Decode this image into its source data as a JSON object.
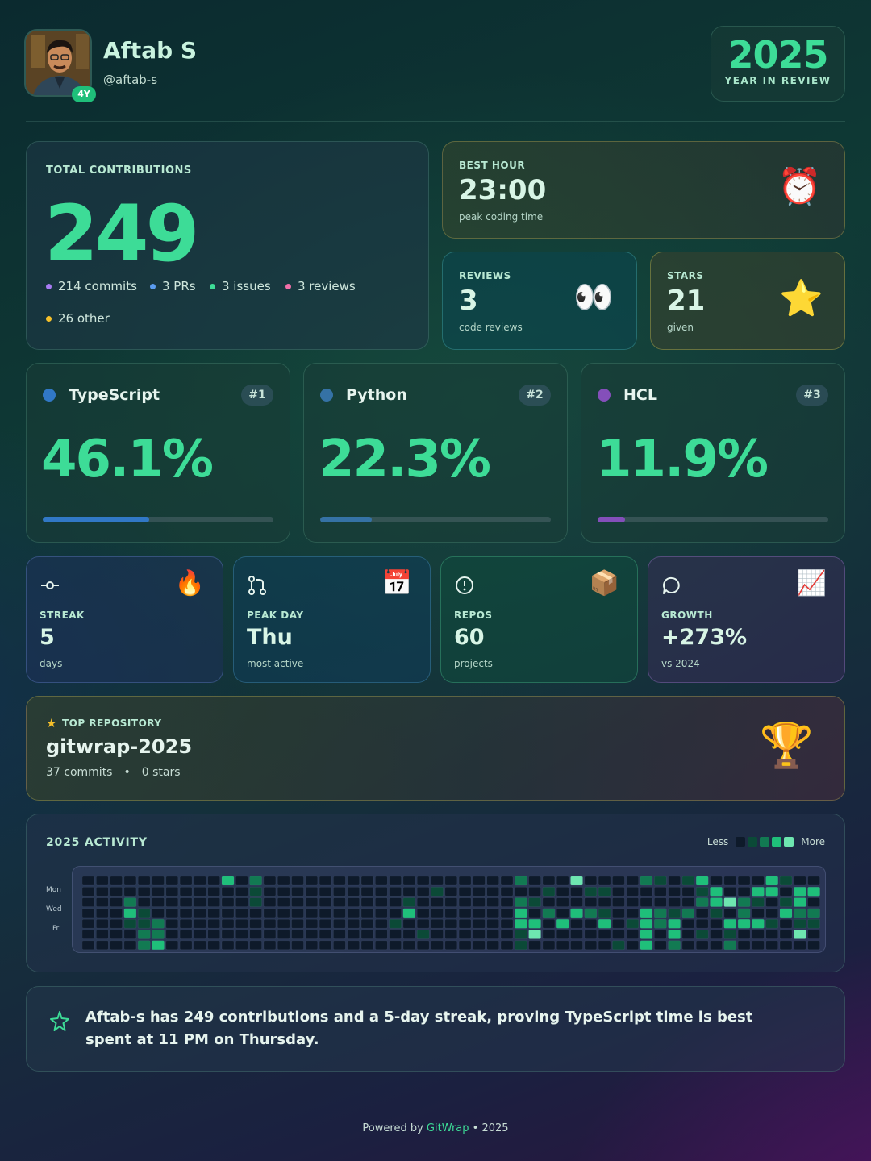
{
  "profile": {
    "name": "Aftab S",
    "handle": "@aftab-s",
    "badge": "4Y"
  },
  "year_box": {
    "year": "2025",
    "caption": "YEAR IN REVIEW"
  },
  "total": {
    "label": "TOTAL CONTRIBUTIONS",
    "value": "249",
    "breakdown": [
      {
        "text": "214 commits",
        "color": "#a77bf2"
      },
      {
        "text": "3 PRs",
        "color": "#5b9cf0"
      },
      {
        "text": "3 issues",
        "color": "#3ddc97"
      },
      {
        "text": "3 reviews",
        "color": "#f06fa8"
      },
      {
        "text": "26 other",
        "color": "#f5c02a"
      }
    ]
  },
  "best_hour": {
    "label": "BEST HOUR",
    "value": "23:00",
    "caption": "peak coding time",
    "icon": "alarm-clock-icon"
  },
  "reviews": {
    "label": "REVIEWS",
    "value": "3",
    "caption": "code reviews",
    "icon": "eyes-icon"
  },
  "stars": {
    "label": "STARS",
    "value": "21",
    "caption": "given",
    "icon": "star-icon"
  },
  "languages": [
    {
      "name": "TypeScript",
      "rank": "#1",
      "percent": "46.1%",
      "share": 46.1,
      "color": "#3178c6"
    },
    {
      "name": "Python",
      "rank": "#2",
      "percent": "22.3%",
      "share": 22.3,
      "color": "#3572a5"
    },
    {
      "name": "HCL",
      "rank": "#3",
      "percent": "11.9%",
      "share": 11.9,
      "color": "#844fba"
    }
  ],
  "mini_stats": [
    {
      "label": "STREAK",
      "value": "5",
      "caption": "days",
      "icon": "commit-icon",
      "emoji_icon": "fire-icon",
      "emoji": "🔥"
    },
    {
      "label": "PEAK DAY",
      "value": "Thu",
      "caption": "most active",
      "icon": "pull-request-icon",
      "emoji_icon": "calendar-icon",
      "emoji": "📅"
    },
    {
      "label": "REPOS",
      "value": "60",
      "caption": "projects",
      "icon": "issue-icon",
      "emoji_icon": "package-icon",
      "emoji": "📦"
    },
    {
      "label": "GROWTH",
      "value": "+273%",
      "caption": "vs 2024",
      "icon": "comment-icon",
      "emoji_icon": "chart-increasing-icon",
      "emoji": "📈"
    }
  ],
  "top_repo": {
    "label": "TOP REPOSITORY",
    "name": "gitwrap-2025",
    "commits": "37 commits",
    "separator": "•",
    "stars": "0 stars",
    "icon": "trophy-icon"
  },
  "activity": {
    "label": "2025 ACTIVITY",
    "less": "Less",
    "more": "More",
    "day_labels": [
      "Mon",
      "Wed",
      "Fri"
    ],
    "level_colors": [
      "#0e1a2a",
      "#0b4a37",
      "#127a52",
      "#1fbf7a",
      "#6ee6b0"
    ]
  },
  "summary": {
    "text": "Aftab-s has 249 contributions and a 5-day streak, proving TypeScript time is best spent at 11 PM on Thursday.",
    "icon": "sparkle-icon"
  },
  "footer": {
    "prefix": "Powered by ",
    "brand": "GitWrap",
    "suffix": " • 2025"
  }
}
